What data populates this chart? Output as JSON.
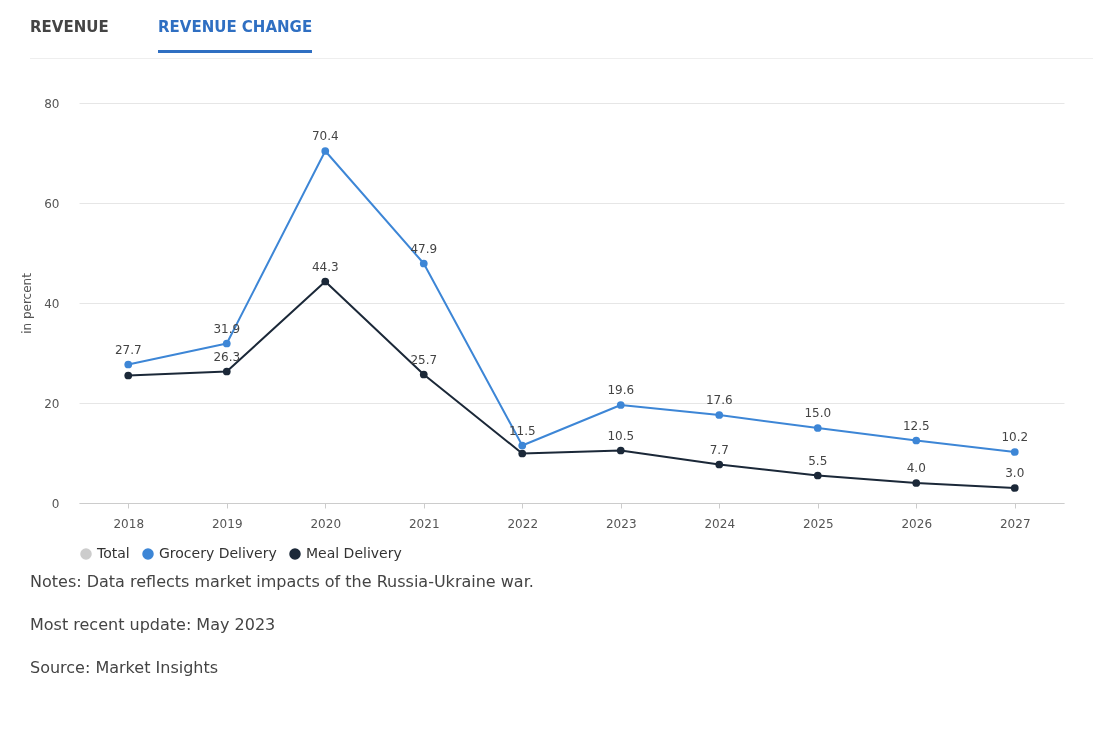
{
  "chart_data": {
    "type": "line",
    "ylabel": "in percent",
    "categories": [
      "2018",
      "2019",
      "2020",
      "2021",
      "2022",
      "2023",
      "2024",
      "2025",
      "2026",
      "2027"
    ],
    "series": [
      {
        "name": "Total",
        "color": "#cccccc",
        "values": [
          null,
          null,
          null,
          null,
          null,
          null,
          null,
          null,
          null,
          null
        ]
      },
      {
        "name": "Grocery Delivery",
        "color": "#3d86d6",
        "values": [
          27.7,
          31.9,
          70.4,
          47.9,
          11.5,
          19.6,
          17.6,
          15.0,
          12.5,
          10.2
        ],
        "value_labels": [
          "27.7",
          "31.9",
          "70.4",
          "47.9",
          "11.5",
          "19.6",
          "17.6",
          "15.0",
          "12.5",
          "10.2"
        ]
      },
      {
        "name": "Meal Delivery",
        "color": "#1b2838",
        "values": [
          25.5,
          26.3,
          44.3,
          25.7,
          9.9,
          10.5,
          7.7,
          5.5,
          4.0,
          3.0
        ],
        "value_labels": [
          null,
          "26.3",
          "44.3",
          "25.7",
          null,
          "10.5",
          "7.7",
          "5.5",
          "4.0",
          "3.0"
        ]
      }
    ],
    "ylim": [
      0,
      80
    ],
    "yticks": [
      0,
      20,
      40,
      60,
      80
    ],
    "grid": "y",
    "legend": "bottom",
    "marker": "circle",
    "line_style": "solid",
    "annotations": [
      "REVENUE",
      "REVENUE CHANGE",
      "Notes: Data reflects market impacts of the Russia-Ukraine war.",
      "Most recent update: May 2023",
      "Source: Market Insights"
    ]
  }
}
